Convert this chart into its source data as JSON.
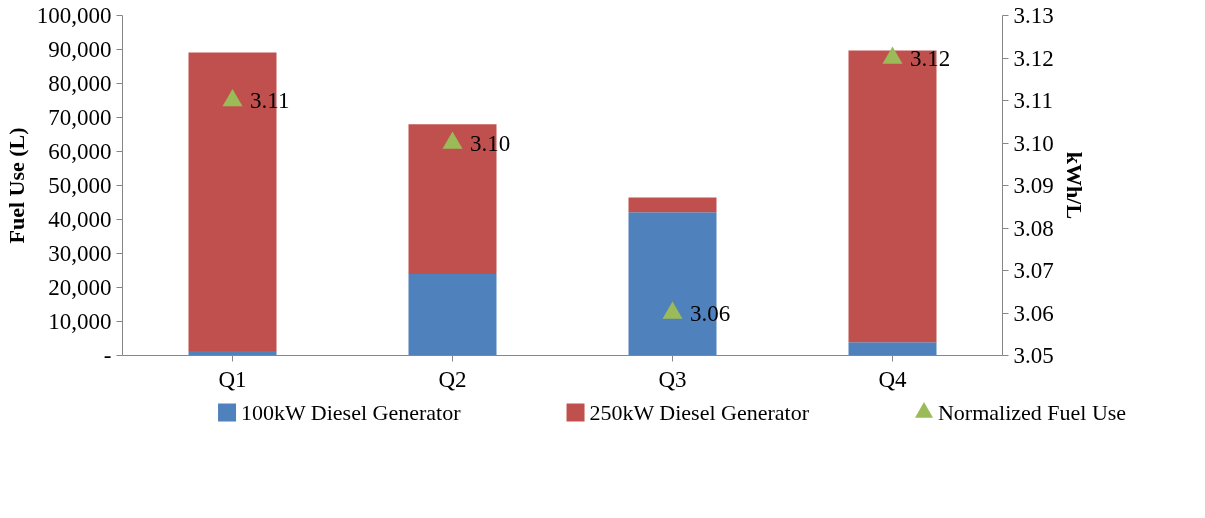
{
  "chart_data": {
    "type": "bar",
    "stacked": true,
    "categories": [
      "Q1",
      "Q2",
      "Q3",
      "Q4"
    ],
    "ylabel": "Fuel Use (L)",
    "y2label": "kWh/L",
    "ylim": [
      0,
      100000
    ],
    "yticks": [
      {
        "value": 0,
        "label": "-"
      },
      {
        "value": 10000,
        "label": "10,000"
      },
      {
        "value": 20000,
        "label": "20,000"
      },
      {
        "value": 30000,
        "label": "30,000"
      },
      {
        "value": 40000,
        "label": "40,000"
      },
      {
        "value": 50000,
        "label": "50,000"
      },
      {
        "value": 60000,
        "label": "60,000"
      },
      {
        "value": 70000,
        "label": "70,000"
      },
      {
        "value": 80000,
        "label": "80,000"
      },
      {
        "value": 90000,
        "label": "90,000"
      },
      {
        "value": 100000,
        "label": "100,000"
      }
    ],
    "y2lim": [
      3.05,
      3.13
    ],
    "y2ticks": [
      3.05,
      3.06,
      3.07,
      3.08,
      3.09,
      {
        "value": 3.1,
        "label": "3.10"
      },
      3.11,
      3.12,
      3.13
    ],
    "grid": false,
    "legend": "bottom",
    "marker": "triangle",
    "series": [
      {
        "name": "100kW Diesel Generator",
        "color": "#4f81bd",
        "values": [
          1300,
          24000,
          42100,
          3900
        ]
      },
      {
        "name": "250kW Diesel Generator",
        "color": "#c0504d",
        "values": [
          87800,
          44000,
          4400,
          85800
        ]
      },
      {
        "name": "Normalized Fuel Use",
        "type": "scatter",
        "axis": "y2",
        "color": "#9bbb59",
        "values": [
          3.11,
          3.1,
          3.06,
          3.12
        ],
        "value_labels": [
          "3.11",
          "3.10",
          "3.06",
          "3.12"
        ]
      }
    ]
  }
}
